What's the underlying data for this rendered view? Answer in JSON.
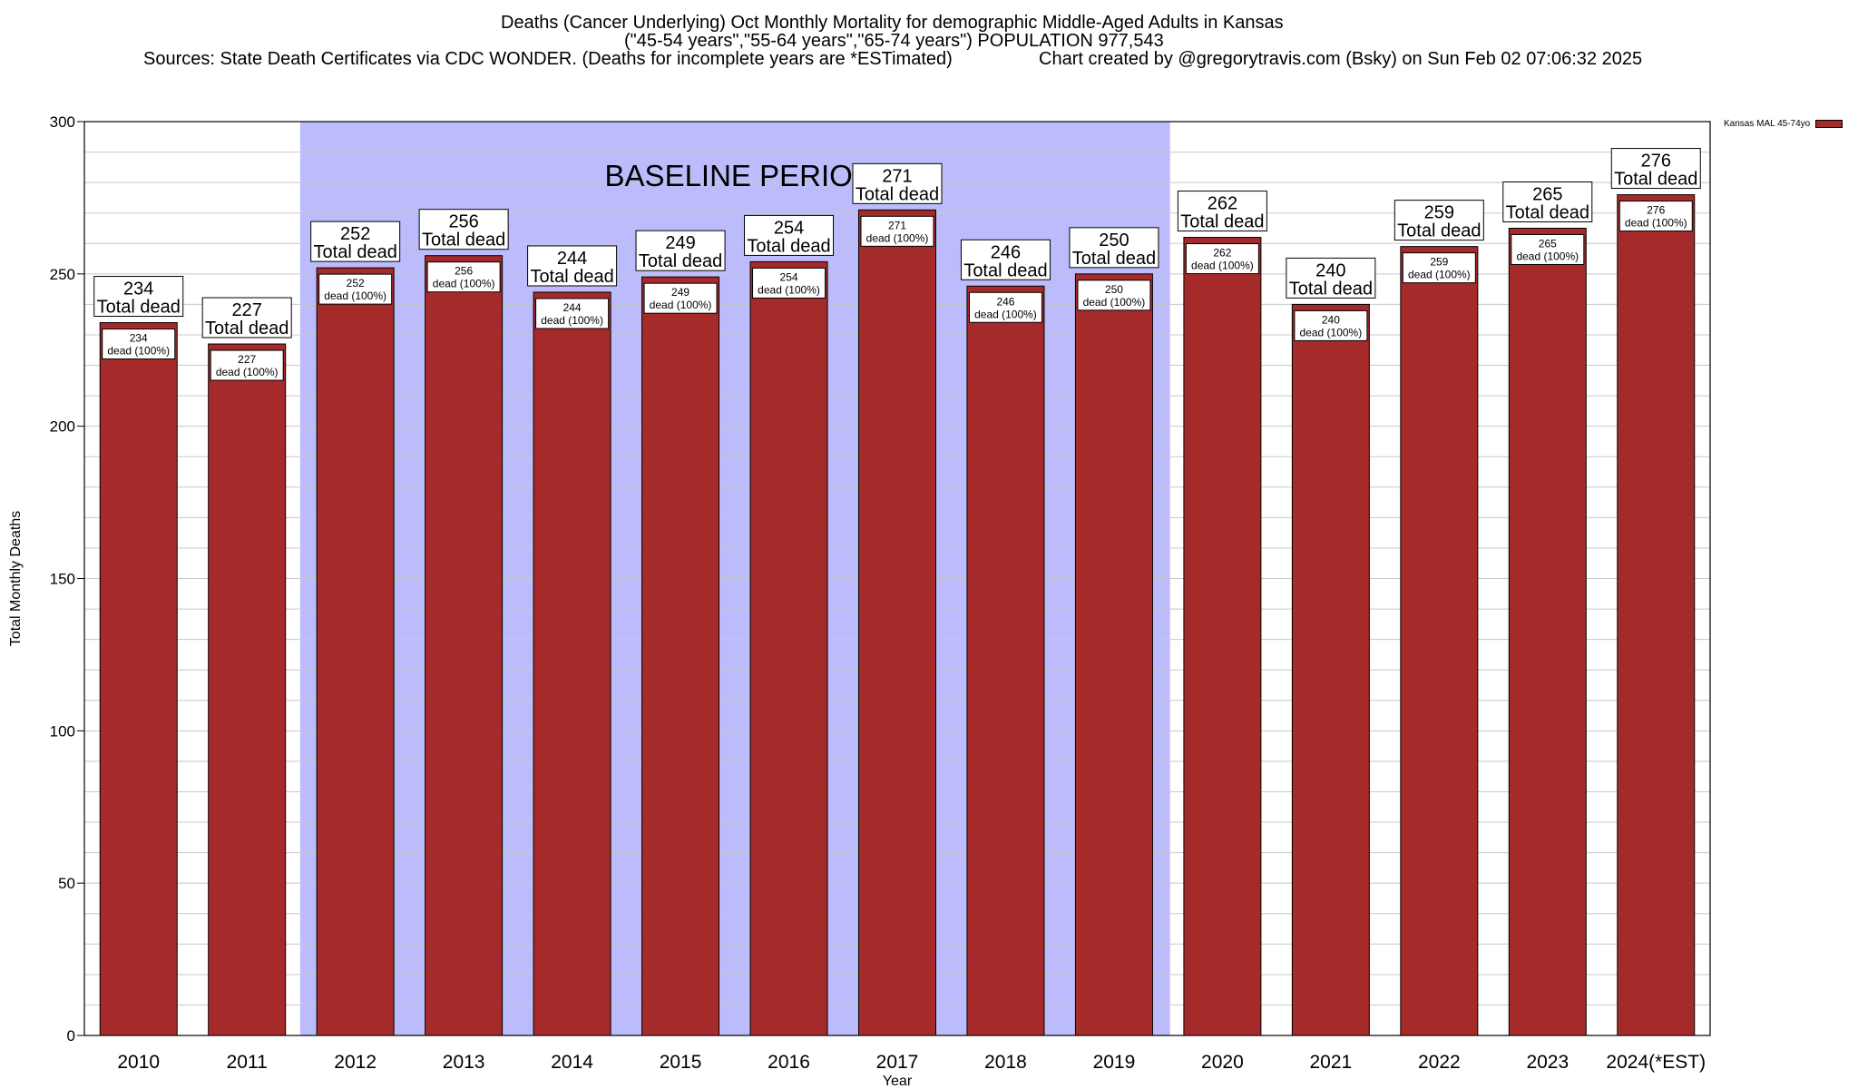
{
  "title": {
    "line1": "Deaths (Cancer Underlying) Oct Monthly Mortality for demographic Middle-Aged Adults in Kansas",
    "line2": "(\"45-54 years\",\"55-64 years\",\"65-74 years\") POPULATION 977,543",
    "line3_left": "Sources: State Death Certificates via CDC WONDER. (Deaths for incomplete years are *ESTimated)",
    "line3_right": "Chart created by @gregorytravis.com (Bsky) on Sun Feb 02 07:06:32 2025"
  },
  "legend": {
    "label": "Kansas MAL 45-74yo"
  },
  "colors": {
    "bar": "#a52a2a",
    "baseline": "#bcbcfc",
    "grid": "#c8c8c8"
  },
  "chart_data": {
    "type": "bar",
    "xlabel": "Year",
    "ylabel": "Total Monthly Deaths",
    "ylim": [
      0,
      300
    ],
    "yticks": [
      0,
      50,
      100,
      150,
      200,
      250,
      300
    ],
    "grid": true,
    "legend_position": "top-right, outside plot",
    "categories": [
      "2010",
      "2011",
      "2012",
      "2013",
      "2014",
      "2015",
      "2016",
      "2017",
      "2018",
      "2019",
      "2020",
      "2021",
      "2022",
      "2023",
      "2024(*EST)"
    ],
    "series": [
      {
        "name": "Kansas MAL 45-74yo",
        "values": [
          234,
          227,
          252,
          256,
          244,
          249,
          254,
          271,
          246,
          250,
          262,
          240,
          259,
          265,
          276
        ]
      }
    ],
    "top_label_suffix": "Total dead",
    "inner_label_suffix": "dead (100%)",
    "baseline_region": {
      "label": "BASELINE PERIOD",
      "from": "2012",
      "to": "2019"
    }
  }
}
